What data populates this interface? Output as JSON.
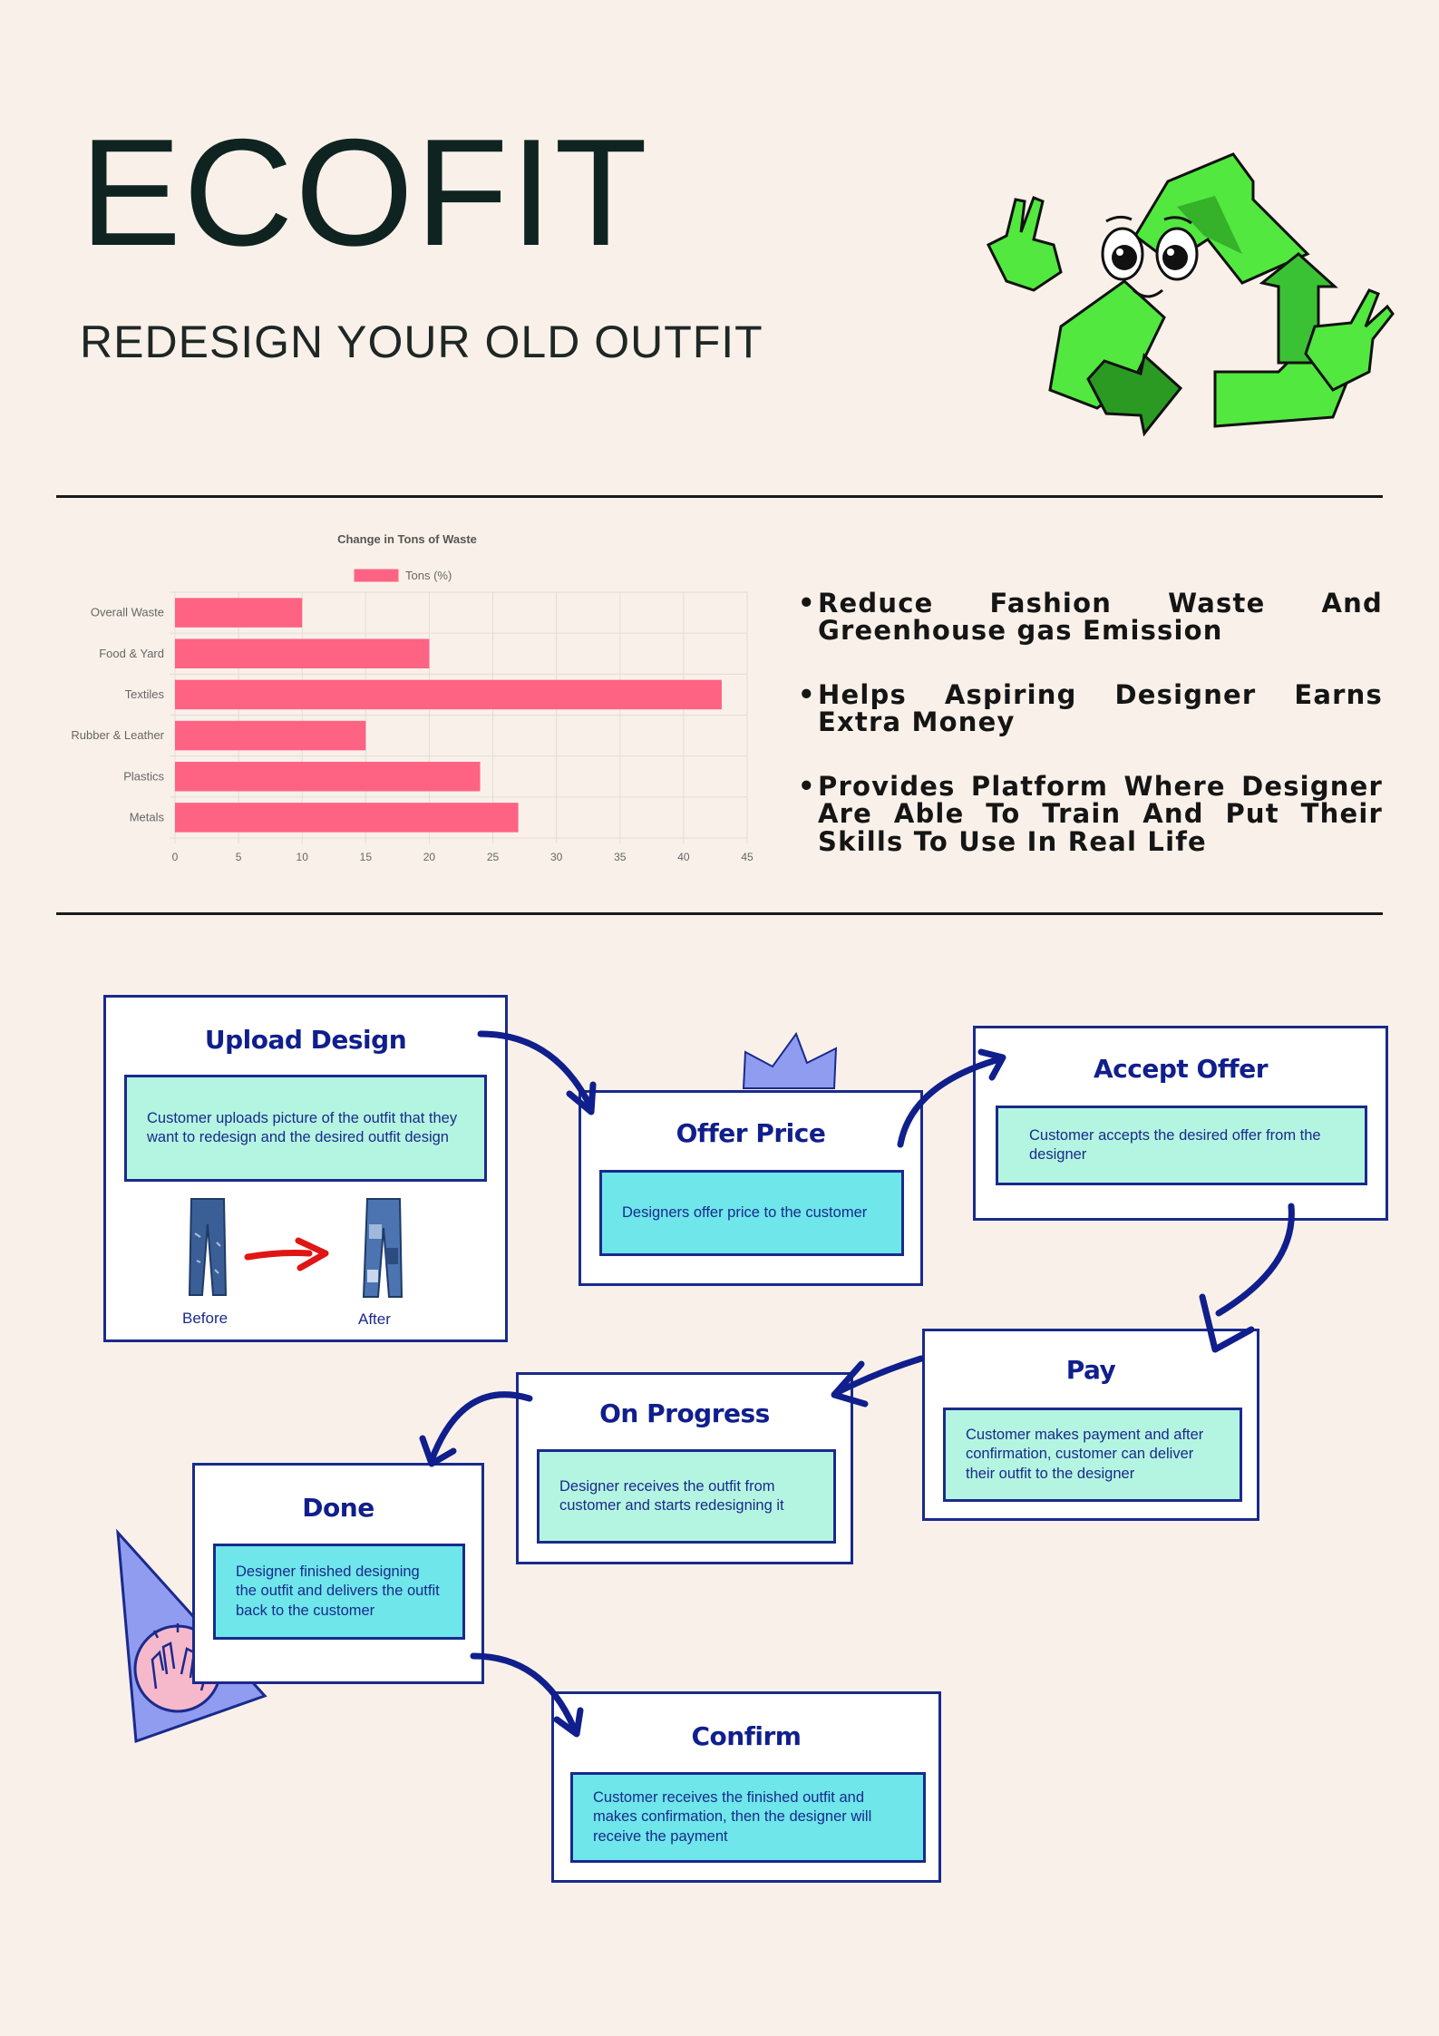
{
  "header": {
    "brand": "ECOFIT",
    "tagline": "REDESIGN YOUR OLD OUTFIT"
  },
  "icons": {
    "mascot": "recycle-mascot-icon",
    "jeans_before": "jeans-icon",
    "jeans_after": "patched-jeans-icon",
    "arrow": "red-arrow-icon",
    "hands": "waving-hands-icon"
  },
  "colors": {
    "background": "#f9f1e9",
    "bar": "#ff6384",
    "navy": "#1a2a8c",
    "mint": "#b4f5e1",
    "cyan": "#6ee6ea",
    "green": "#52e83f"
  },
  "chart_data": {
    "type": "bar",
    "orientation": "horizontal",
    "title": "Change in Tons of Waste",
    "categories": [
      "Overall Waste",
      "Food & Yard",
      "Textiles",
      "Rubber & Leather",
      "Plastics",
      "Metals"
    ],
    "series": [
      {
        "name": "Tons (%)",
        "values": [
          10,
          20,
          43,
          15,
          24,
          27
        ]
      }
    ],
    "xlim": [
      0,
      45
    ],
    "xticks": [
      0,
      5,
      10,
      15,
      20,
      25,
      30,
      35,
      40,
      45
    ],
    "grid": true,
    "legend": "top-center"
  },
  "bullets": [
    "Reduce Fashion Waste And Greenhouse gas Emission",
    "Helps Aspiring Designer Earns Extra Money",
    "Provides Platform Where Designer Are Able To Train And Put Their Skills To Use In Real Life"
  ],
  "steps": {
    "upload": {
      "title": "Upload Design",
      "desc": "Customer uploads picture of the outfit that they want to redesign and the desired outfit design",
      "before": "Before",
      "after": "After"
    },
    "offer": {
      "title": "Offer Price",
      "desc": "Designers offer price to the customer"
    },
    "accept": {
      "title": "Accept Offer",
      "desc": "Customer accepts the desired offer from the designer"
    },
    "pay": {
      "title": "Pay",
      "desc": "Customer makes payment and after confirmation, customer can deliver their outfit to the designer"
    },
    "progress": {
      "title": "On Progress",
      "desc": "Designer receives the outfit from customer and starts redesigning it"
    },
    "done": {
      "title": "Done",
      "desc": "Designer finished designing the outfit and delivers the outfit back to the customer"
    },
    "confirm": {
      "title": "Confirm",
      "desc": "Customer receives the finished outfit and makes confirmation, then the designer will receive the payment"
    }
  }
}
